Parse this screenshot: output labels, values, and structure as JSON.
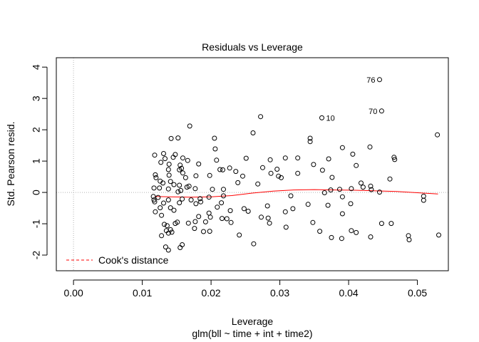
{
  "chart_data": {
    "type": "scatter",
    "title": "Residuals vs Leverage",
    "xlabel": "Leverage",
    "ylabel": "Std. Pearson resid.",
    "subtitle": "glm(bll ~ time + int + time2)",
    "xlim": [
      -0.0025,
      0.0545
    ],
    "ylim": [
      -2.5,
      4.3
    ],
    "x_ticks": [
      "0.00",
      "0.01",
      "0.02",
      "0.03",
      "0.04",
      "0.05"
    ],
    "y_ticks": [
      "-2",
      "-1",
      "0",
      "1",
      "2",
      "3",
      "4"
    ],
    "grid": false,
    "reference_lines": {
      "x": 0,
      "y": 0,
      "style": "dotted",
      "color": "#b3b3b3"
    },
    "legend": {
      "position": "bottom-left",
      "entries": [
        {
          "label": "Cook's distance",
          "color": "#ff0000",
          "style": "dashed"
        }
      ]
    },
    "labeled_points": [
      {
        "label": "76",
        "x": 0.0445,
        "y": 3.6
      },
      {
        "label": "70",
        "x": 0.0448,
        "y": 2.6
      },
      {
        "label": "10",
        "x": 0.0361,
        "y": 2.38
      }
    ],
    "smooth": {
      "color": "#ff0000",
      "points": [
        [
          0.0118,
          -0.13
        ],
        [
          0.014,
          -0.14
        ],
        [
          0.017,
          -0.15
        ],
        [
          0.02,
          -0.14
        ],
        [
          0.023,
          -0.1
        ],
        [
          0.026,
          -0.02
        ],
        [
          0.029,
          0.04
        ],
        [
          0.032,
          0.08
        ],
        [
          0.035,
          0.09
        ],
        [
          0.038,
          0.08
        ],
        [
          0.041,
          0.07
        ],
        [
          0.044,
          0.05
        ],
        [
          0.047,
          0.03
        ],
        [
          0.05,
          -0.01
        ],
        [
          0.053,
          -0.05
        ]
      ]
    },
    "points": [
      [
        0.0445,
        3.6
      ],
      [
        0.0448,
        2.6
      ],
      [
        0.0361,
        2.38
      ],
      [
        0.0272,
        2.42
      ],
      [
        0.0169,
        2.12
      ],
      [
        0.0261,
        1.9
      ],
      [
        0.0152,
        1.74
      ],
      [
        0.0142,
        1.72
      ],
      [
        0.0205,
        1.73
      ],
      [
        0.0344,
        1.73
      ],
      [
        0.0529,
        1.84
      ],
      [
        0.0344,
        1.62
      ],
      [
        0.0206,
        1.39
      ],
      [
        0.0118,
        1.19
      ],
      [
        0.0131,
        1.24
      ],
      [
        0.0148,
        1.21
      ],
      [
        0.0133,
        1.08
      ],
      [
        0.0145,
        1.12
      ],
      [
        0.0159,
        1.1
      ],
      [
        0.0127,
        0.96
      ],
      [
        0.0139,
        0.9
      ],
      [
        0.0166,
        1.02
      ],
      [
        0.0208,
        1.03
      ],
      [
        0.0251,
        1.09
      ],
      [
        0.0286,
        1.04
      ],
      [
        0.0308,
        1.1
      ],
      [
        0.0326,
        1.1
      ],
      [
        0.0371,
        1.07
      ],
      [
        0.0391,
        1.43
      ],
      [
        0.0406,
        1.22
      ],
      [
        0.0431,
        1.45
      ],
      [
        0.0466,
        1.12
      ],
      [
        0.0467,
        1.05
      ],
      [
        0.0182,
        0.91
      ],
      [
        0.0213,
        0.73
      ],
      [
        0.0217,
        0.72
      ],
      [
        0.0227,
        0.78
      ],
      [
        0.0236,
        0.67
      ],
      [
        0.0154,
        0.72
      ],
      [
        0.0157,
        0.77
      ],
      [
        0.0155,
        0.87
      ],
      [
        0.0159,
        0.62
      ],
      [
        0.0138,
        0.73
      ],
      [
        0.0139,
        0.55
      ],
      [
        0.0163,
        0.47
      ],
      [
        0.0178,
        0.53
      ],
      [
        0.0198,
        0.54
      ],
      [
        0.0119,
        0.56
      ],
      [
        0.012,
        0.47
      ],
      [
        0.0126,
        0.36
      ],
      [
        0.013,
        0.3
      ],
      [
        0.0141,
        0.35
      ],
      [
        0.0146,
        0.25
      ],
      [
        0.0154,
        0.23
      ],
      [
        0.0117,
        0.14
      ],
      [
        0.0125,
        0.14
      ],
      [
        0.0138,
        0.11
      ],
      [
        0.0152,
        0.02
      ],
      [
        0.0156,
        0.06
      ],
      [
        0.0165,
        0.17
      ],
      [
        0.0168,
        0.2
      ],
      [
        0.0177,
        0.12
      ],
      [
        0.0202,
        0.1
      ],
      [
        0.0218,
        0.1
      ],
      [
        0.0239,
        0.31
      ],
      [
        0.0246,
        0.52
      ],
      [
        0.0268,
        0.27
      ],
      [
        0.0275,
        0.79
      ],
      [
        0.0287,
        0.61
      ],
      [
        0.0296,
        0.74
      ],
      [
        0.0298,
        0.52
      ],
      [
        0.0302,
        0.47
      ],
      [
        0.0326,
        0.61
      ],
      [
        0.0349,
        0.89
      ],
      [
        0.0362,
        0.71
      ],
      [
        0.0365,
        -0.01
      ],
      [
        0.0374,
        0.08
      ],
      [
        0.0376,
        0.48
      ],
      [
        0.0387,
        0.1
      ],
      [
        0.0391,
        -0.14
      ],
      [
        0.0404,
        0.12
      ],
      [
        0.0411,
        0.86
      ],
      [
        0.0418,
        0.3
      ],
      [
        0.0421,
        0.17
      ],
      [
        0.0432,
        0.2
      ],
      [
        0.0433,
        0.09
      ],
      [
        0.0445,
        0.01
      ],
      [
        0.046,
        0.43
      ],
      [
        0.0509,
        -0.12
      ],
      [
        0.0509,
        -0.25
      ],
      [
        0.0116,
        -0.13
      ],
      [
        0.0117,
        -0.24
      ],
      [
        0.0123,
        -0.16
      ],
      [
        0.0126,
        -0.49
      ],
      [
        0.0131,
        -0.34
      ],
      [
        0.0138,
        -0.24
      ],
      [
        0.0141,
        -0.49
      ],
      [
        0.0146,
        -0.57
      ],
      [
        0.0154,
        -0.33
      ],
      [
        0.0158,
        -0.21
      ],
      [
        0.0171,
        -0.24
      ],
      [
        0.0178,
        -0.36
      ],
      [
        0.0184,
        -0.2
      ],
      [
        0.0185,
        -0.3
      ],
      [
        0.0197,
        -0.15
      ],
      [
        0.0209,
        -0.47
      ],
      [
        0.0215,
        -0.33
      ],
      [
        0.0218,
        -0.11
      ],
      [
        0.0228,
        -0.58
      ],
      [
        0.0248,
        -0.52
      ],
      [
        0.0254,
        -0.6
      ],
      [
        0.0282,
        -0.43
      ],
      [
        0.0308,
        -0.62
      ],
      [
        0.0319,
        -0.52
      ],
      [
        0.0316,
        -0.11
      ],
      [
        0.0341,
        -0.38
      ],
      [
        0.037,
        -0.41
      ],
      [
        0.0391,
        -0.68
      ],
      [
        0.0403,
        -0.36
      ],
      [
        0.0448,
        -0.99
      ],
      [
        0.0118,
        -0.3
      ],
      [
        0.0119,
        -0.62
      ],
      [
        0.0128,
        -0.73
      ],
      [
        0.0132,
        -1.02
      ],
      [
        0.0136,
        -1.06
      ],
      [
        0.0141,
        -1.19
      ],
      [
        0.0148,
        -0.99
      ],
      [
        0.0151,
        -0.95
      ],
      [
        0.0167,
        -0.98
      ],
      [
        0.0177,
        -0.93
      ],
      [
        0.0182,
        -0.77
      ],
      [
        0.0192,
        -0.94
      ],
      [
        0.0197,
        -0.66
      ],
      [
        0.0199,
        -0.79
      ],
      [
        0.0216,
        -0.83
      ],
      [
        0.0223,
        -0.84
      ],
      [
        0.0229,
        -0.96
      ],
      [
        0.0241,
        -1.36
      ],
      [
        0.0273,
        -0.79
      ],
      [
        0.0283,
        -0.82
      ],
      [
        0.0285,
        -0.98
      ],
      [
        0.0309,
        -1.11
      ],
      [
        0.0348,
        -0.96
      ],
      [
        0.0358,
        -1.24
      ],
      [
        0.0375,
        -1.44
      ],
      [
        0.039,
        -1.47
      ],
      [
        0.0404,
        -1.22
      ],
      [
        0.0411,
        -1.28
      ],
      [
        0.0432,
        -1.42
      ],
      [
        0.0462,
        -0.99
      ],
      [
        0.0487,
        -1.38
      ],
      [
        0.0488,
        -1.51
      ],
      [
        0.0531,
        -1.36
      ],
      [
        0.0128,
        -1.38
      ],
      [
        0.0135,
        -1.22
      ],
      [
        0.0138,
        -1.3
      ],
      [
        0.0143,
        -1.27
      ],
      [
        0.0155,
        -1.76
      ],
      [
        0.0158,
        -1.67
      ],
      [
        0.0176,
        -1.15
      ],
      [
        0.0189,
        -1.25
      ],
      [
        0.0198,
        -1.24
      ],
      [
        0.0262,
        -1.64
      ],
      [
        0.0134,
        -1.74
      ],
      [
        0.0138,
        -1.84
      ]
    ]
  }
}
